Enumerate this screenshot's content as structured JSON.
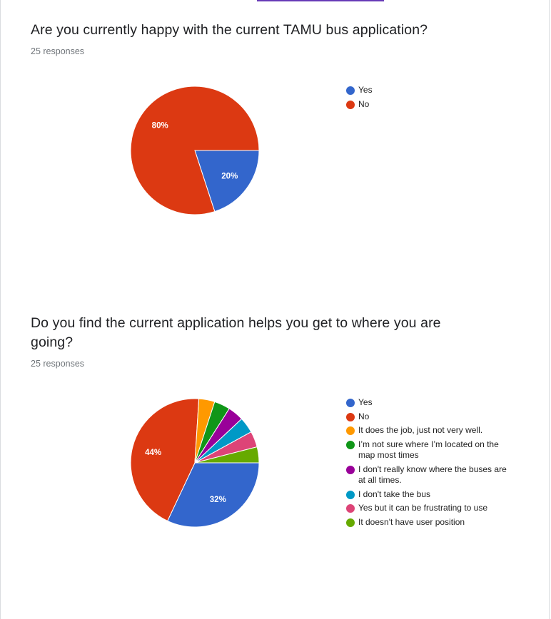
{
  "theme": {
    "accent": "#673ab7"
  },
  "questions": [
    {
      "title": "Are you currently happy with the current TAMU bus application?",
      "responses": "25 responses",
      "chart_data": {
        "type": "pie",
        "categories": [
          "Yes",
          "No"
        ],
        "values": [
          20,
          80
        ],
        "labels": [
          "20%",
          "80%"
        ],
        "colors": [
          "#3366cc",
          "#dc3912"
        ],
        "legend_position": "right"
      }
    },
    {
      "title": "Do you find the current application helps you get to where you are going?",
      "responses": "25 responses",
      "chart_data": {
        "type": "pie",
        "categories": [
          "Yes",
          "No",
          "It does the job, just not very well.",
          "I’m not sure where I’m located on the map most times",
          "I don't really know where the buses are at all times.",
          "I don't take the bus",
          "Yes but it can be frustrating to use",
          "It doesn't have user position"
        ],
        "values": [
          32,
          44,
          4,
          4,
          4,
          4,
          4,
          4
        ],
        "labels": [
          "32%",
          "44%",
          "",
          "",
          "",
          "",
          "",
          ""
        ],
        "colors": [
          "#3366cc",
          "#dc3912",
          "#ff9900",
          "#109618",
          "#990099",
          "#0099c6",
          "#dd4477",
          "#66aa00"
        ],
        "legend_position": "right"
      }
    }
  ]
}
